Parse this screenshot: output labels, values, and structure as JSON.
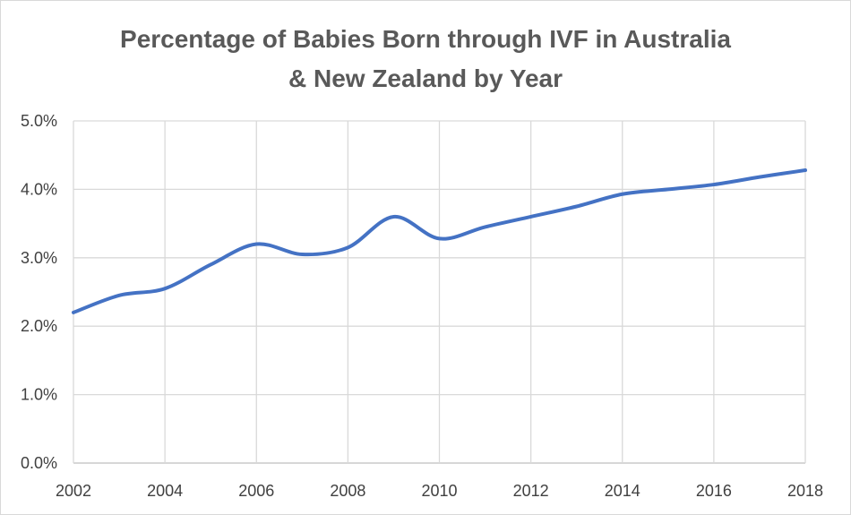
{
  "chart_data": {
    "type": "line",
    "title_lines": [
      "Percentage of Babies Born through IVF in Australia",
      "& New Zealand by Year"
    ],
    "xlabel": "",
    "ylabel": "",
    "x": [
      2002,
      2003,
      2004,
      2005,
      2006,
      2007,
      2008,
      2009,
      2010,
      2011,
      2012,
      2013,
      2014,
      2015,
      2016,
      2017,
      2018
    ],
    "series": [
      {
        "values": [
          2.2,
          2.45,
          2.55,
          2.9,
          3.2,
          3.05,
          3.15,
          3.6,
          3.28,
          3.45,
          3.6,
          3.75,
          3.93,
          4.0,
          4.07,
          4.18,
          4.28
        ]
      }
    ],
    "xlim": [
      2002,
      2018
    ],
    "ylim": [
      0,
      5
    ],
    "x_ticks": [
      2002,
      2004,
      2006,
      2008,
      2010,
      2012,
      2014,
      2016,
      2018
    ],
    "x_tick_labels": [
      "2002",
      "2004",
      "2006",
      "2008",
      "2010",
      "2012",
      "2014",
      "2016",
      "2018"
    ],
    "y_ticks": [
      0,
      1,
      2,
      3,
      4,
      5
    ],
    "y_tick_labels": [
      "0.0%",
      "1.0%",
      "2.0%",
      "3.0%",
      "4.0%",
      "5.0%"
    ],
    "grid": true,
    "legend": "none",
    "colors": {
      "series": "#4472c4",
      "grid": "#d9d9d9",
      "title": "#595959",
      "text": "#404040"
    }
  }
}
